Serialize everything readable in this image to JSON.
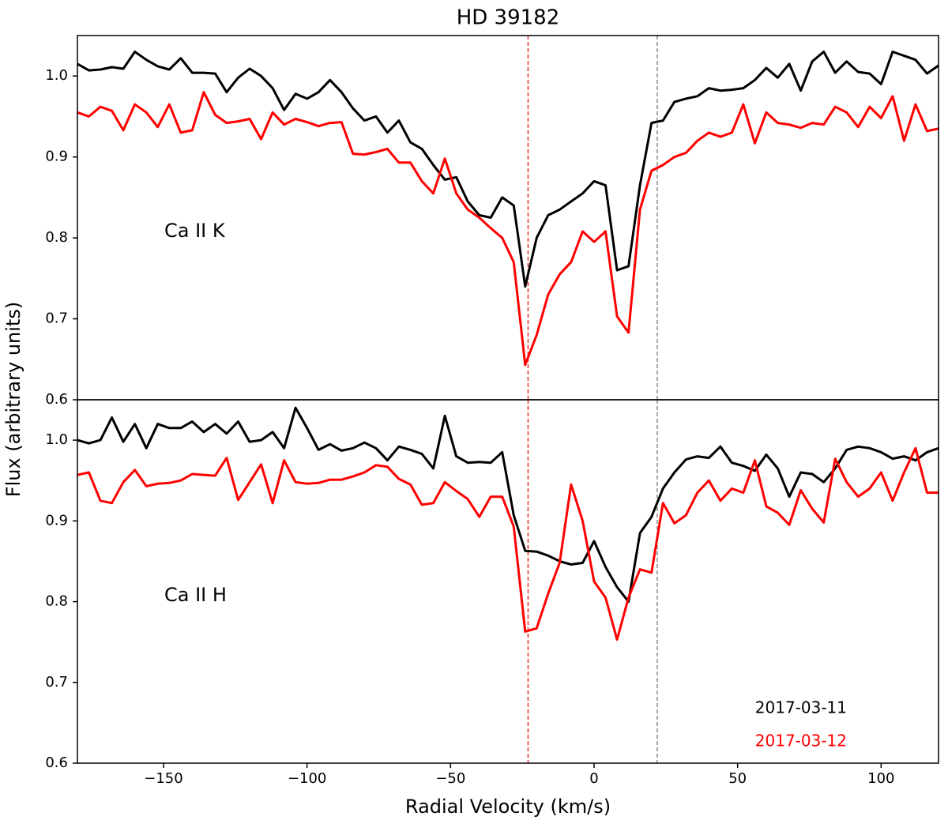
{
  "chart_data": [
    {
      "type": "line",
      "title": "HD 39182",
      "ylabel": "Flux (arbitrary units)",
      "annotation": "Ca II K",
      "x": [
        -180,
        -176,
        -172,
        -168,
        -164,
        -160,
        -156,
        -152,
        -148,
        -144,
        -140,
        -136,
        -132,
        -128,
        -124,
        -120,
        -116,
        -112,
        -108,
        -104,
        -100,
        -96,
        -92,
        -88,
        -84,
        -80,
        -76,
        -72,
        -68,
        -64,
        -60,
        -56,
        -52,
        -48,
        -44,
        -40,
        -36,
        -32,
        -28,
        -24,
        -20,
        -16,
        -12,
        -8,
        -4,
        0,
        4,
        8,
        12,
        16,
        20,
        24,
        28,
        32,
        36,
        40,
        44,
        48,
        52,
        56,
        60,
        64,
        68,
        72,
        76,
        80,
        84,
        88,
        92,
        96,
        100,
        104,
        108,
        112,
        116,
        120
      ],
      "series": [
        {
          "color": "#000000",
          "values": [
            1.015,
            1.007,
            1.008,
            1.011,
            1.009,
            1.03,
            1.02,
            1.012,
            1.008,
            1.022,
            1.004,
            1.004,
            1.003,
            0.98,
            0.998,
            1.009,
            1.0,
            0.985,
            0.958,
            0.978,
            0.972,
            0.98,
            0.995,
            0.98,
            0.96,
            0.945,
            0.95,
            0.93,
            0.945,
            0.918,
            0.91,
            0.89,
            0.872,
            0.875,
            0.845,
            0.828,
            0.825,
            0.85,
            0.84,
            0.74,
            0.8,
            0.828,
            0.835,
            0.845,
            0.855,
            0.87,
            0.865,
            0.76,
            0.765,
            0.865,
            0.942,
            0.945,
            0.968,
            0.972,
            0.975,
            0.985,
            0.982,
            0.983,
            0.985,
            0.995,
            1.01,
            0.998,
            1.015,
            0.982,
            1.018,
            1.03,
            1.004,
            1.018,
            1.005,
            1.003,
            0.99,
            1.03,
            1.025,
            1.02,
            1.003,
            1.013
          ]
        },
        {
          "color": "#ff0000",
          "values": [
            0.955,
            0.95,
            0.962,
            0.957,
            0.933,
            0.965,
            0.955,
            0.937,
            0.965,
            0.93,
            0.933,
            0.98,
            0.952,
            0.942,
            0.944,
            0.947,
            0.922,
            0.955,
            0.94,
            0.947,
            0.943,
            0.938,
            0.942,
            0.943,
            0.904,
            0.903,
            0.906,
            0.91,
            0.893,
            0.893,
            0.87,
            0.855,
            0.898,
            0.855,
            0.835,
            0.825,
            0.812,
            0.8,
            0.77,
            0.643,
            0.68,
            0.73,
            0.755,
            0.77,
            0.808,
            0.795,
            0.808,
            0.703,
            0.683,
            0.835,
            0.883,
            0.89,
            0.9,
            0.905,
            0.92,
            0.93,
            0.925,
            0.93,
            0.965,
            0.917,
            0.955,
            0.942,
            0.94,
            0.936,
            0.942,
            0.94,
            0.962,
            0.955,
            0.937,
            0.962,
            0.948,
            0.975,
            0.92,
            0.965,
            0.932,
            0.935
          ]
        }
      ],
      "vlines": [
        {
          "x": -23,
          "color": "#e8302a"
        },
        {
          "x": 22,
          "color": "#888888"
        }
      ],
      "xlim": [
        -180,
        120
      ],
      "ylim": [
        0.6,
        1.05
      ],
      "yticks": [
        0.6,
        0.7,
        0.8,
        0.9,
        {
          "value": 1,
          "label": "1.0"
        }
      ]
    },
    {
      "type": "line",
      "xlabel": "Radial Velocity (km/s)",
      "annotation": "Ca II H",
      "legend": "lower right",
      "x": [
        -180,
        -176,
        -172,
        -168,
        -164,
        -160,
        -156,
        -152,
        -148,
        -144,
        -140,
        -136,
        -132,
        -128,
        -124,
        -120,
        -116,
        -112,
        -108,
        -104,
        -100,
        -96,
        -92,
        -88,
        -84,
        -80,
        -76,
        -72,
        -68,
        -64,
        -60,
        -56,
        -52,
        -48,
        -44,
        -40,
        -36,
        -32,
        -28,
        -24,
        -20,
        -16,
        -12,
        -8,
        -4,
        0,
        4,
        8,
        12,
        16,
        20,
        24,
        28,
        32,
        36,
        40,
        44,
        48,
        52,
        56,
        60,
        64,
        68,
        72,
        76,
        80,
        84,
        88,
        92,
        96,
        100,
        104,
        108,
        112,
        116,
        120
      ],
      "series": [
        {
          "name": "2017-03-11",
          "color": "#000000",
          "values": [
            1.0,
            0.996,
            1.0,
            1.028,
            0.998,
            1.02,
            0.99,
            1.02,
            1.015,
            1.015,
            1.023,
            1.01,
            1.02,
            1.008,
            1.023,
            0.998,
            1.0,
            1.01,
            0.99,
            1.04,
            1.015,
            0.988,
            0.995,
            0.987,
            0.99,
            0.997,
            0.99,
            0.975,
            0.992,
            0.988,
            0.983,
            0.965,
            1.03,
            0.98,
            0.972,
            0.973,
            0.972,
            0.985,
            0.907,
            0.863,
            0.862,
            0.857,
            0.85,
            0.846,
            0.848,
            0.875,
            0.843,
            0.818,
            0.8,
            0.885,
            0.905,
            0.94,
            0.96,
            0.976,
            0.98,
            0.978,
            0.992,
            0.972,
            0.968,
            0.962,
            0.982,
            0.965,
            0.93,
            0.96,
            0.958,
            0.948,
            0.965,
            0.988,
            0.992,
            0.99,
            0.985,
            0.977,
            0.98,
            0.975,
            0.985,
            0.99
          ]
        },
        {
          "name": "2017-03-12",
          "color": "#ff0000",
          "values": [
            0.957,
            0.96,
            0.925,
            0.922,
            0.948,
            0.963,
            0.943,
            0.946,
            0.947,
            0.95,
            0.958,
            0.957,
            0.956,
            0.978,
            0.926,
            0.948,
            0.97,
            0.922,
            0.975,
            0.948,
            0.946,
            0.947,
            0.951,
            0.951,
            0.955,
            0.96,
            0.969,
            0.967,
            0.952,
            0.945,
            0.92,
            0.922,
            0.948,
            0.937,
            0.927,
            0.905,
            0.93,
            0.93,
            0.893,
            0.763,
            0.767,
            0.81,
            0.848,
            0.945,
            0.9,
            0.825,
            0.805,
            0.753,
            0.805,
            0.84,
            0.836,
            0.922,
            0.897,
            0.907,
            0.935,
            0.95,
            0.925,
            0.94,
            0.935,
            0.975,
            0.918,
            0.91,
            0.895,
            0.938,
            0.915,
            0.898,
            0.977,
            0.948,
            0.93,
            0.94,
            0.96,
            0.925,
            0.96,
            0.99,
            0.935,
            0.935
          ]
        }
      ],
      "vlines": [
        {
          "x": -23,
          "color": "#e8302a"
        },
        {
          "x": 22,
          "color": "#888888"
        }
      ],
      "xlim": [
        -180,
        120
      ],
      "ylim": [
        0.6,
        1.05
      ],
      "xticks": [
        {
          "value": -150,
          "label": "−150"
        },
        {
          "value": -100,
          "label": "−100"
        },
        {
          "value": -50,
          "label": "−50"
        },
        0,
        50,
        100
      ],
      "yticks": [
        0.6,
        0.7,
        0.8,
        0.9,
        {
          "value": 1,
          "label": "1.0"
        }
      ]
    }
  ]
}
